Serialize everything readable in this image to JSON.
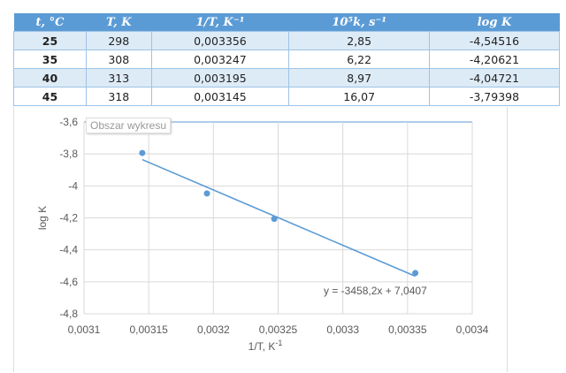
{
  "table": {
    "headers": [
      "t, °C",
      "T, K",
      "1/T, K⁻¹",
      "10⁵k, s⁻¹",
      "log K"
    ],
    "rows": [
      [
        "25",
        "298",
        "0,003356",
        "2,85",
        "-4,54516"
      ],
      [
        "35",
        "308",
        "0,003247",
        "6,22",
        "-4,20621"
      ],
      [
        "40",
        "313",
        "0,003195",
        "8,97",
        "-4,04721"
      ],
      [
        "45",
        "318",
        "0,003145",
        "16,07",
        "-3,79398"
      ]
    ]
  },
  "tooltip": "Obszar wykresu",
  "chart_data": {
    "type": "scatter",
    "x": [
      0.003356,
      0.003247,
      0.003195,
      0.003145
    ],
    "y": [
      -4.54516,
      -4.20621,
      -4.04721,
      -3.79398
    ],
    "trendline": {
      "slope": -3458.2,
      "intercept": 7.0407,
      "label": "y = -3458,2x + 7,0407"
    },
    "xlabel": "1/T, K",
    "xlabel_sup": "-1",
    "ylabel": "log K",
    "xlim": [
      0.0031,
      0.0034
    ],
    "ylim": [
      -4.8,
      -3.6
    ],
    "xticks": [
      0.0031,
      0.00315,
      0.0032,
      0.00325,
      0.0033,
      0.00335,
      0.0034
    ],
    "xtick_labels": [
      "0,0031",
      "0,00315",
      "0,0032",
      "0,00325",
      "0,0033",
      "0,00335",
      "0,0034"
    ],
    "yticks": [
      -3.6,
      -3.8,
      -4,
      -4.2,
      -4.4,
      -4.6,
      -4.8
    ],
    "ytick_labels": [
      "-3,6",
      "-3,8",
      "-4",
      "-4,2",
      "-4,4",
      "-4,6",
      "-4,8"
    ],
    "grid": true,
    "colors": {
      "series": "#5b9bd5",
      "grid": "#d9d9d9"
    }
  }
}
